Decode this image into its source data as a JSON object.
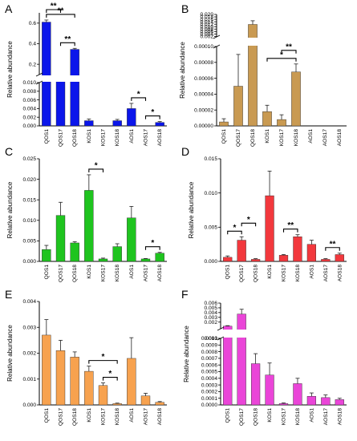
{
  "chart_data": [
    {
      "panel": "A",
      "type": "bar",
      "color": "#0b16ea",
      "ylabel": "Relative abundance",
      "categories": [
        "QOS1",
        "QOS17",
        "QOS18",
        "KOS1",
        "KOS17",
        "KOS18",
        "AOS1",
        "AOS17",
        "AOS18"
      ],
      "broken_axis": {
        "lower": [
          0,
          0.01
        ],
        "upper": [
          0.1,
          0.7
        ]
      },
      "lower_ticks": [
        "0.000",
        "0.002",
        "0.004",
        "0.006",
        "0.008",
        "0.010"
      ],
      "upper_ticks": [
        "0.2",
        "0.4",
        "0.6"
      ],
      "series": [
        {
          "values": [
            0.61,
            0.056,
            0.345,
            0.0012,
            0,
            0.0012,
            0.004,
            0,
            0.0008
          ],
          "errors": [
            0.02,
            0.01,
            0.01,
            0.0004,
            0,
            0.0003,
            0.0012,
            0,
            0.0002
          ]
        }
      ],
      "significance": [
        {
          "from": 0,
          "to": 2,
          "label": "**"
        },
        {
          "from": 0,
          "to": 1,
          "label": "**"
        },
        {
          "from": 1,
          "to": 2,
          "label": "**"
        },
        {
          "from": 6,
          "to": 7,
          "label": "*"
        },
        {
          "from": 7,
          "to": 8,
          "label": "*"
        }
      ]
    },
    {
      "panel": "B",
      "type": "bar",
      "color": "#c99a52",
      "ylabel": "Relative abundance",
      "categories": [
        "QOS1",
        "QOS17",
        "QOS18",
        "KOS1",
        "KOS17",
        "KOS18",
        "AOS1",
        "AOS17",
        "AOS18"
      ],
      "broken_axis": {
        "lower": [
          0,
          0.0001
        ],
        "upper": [
          0.0016,
          0.02
        ]
      },
      "lower_ticks": [
        "0.00000",
        "0.00002",
        "0.00004",
        "0.00006",
        "0.00008",
        "0.00010"
      ],
      "upper_ticks": [
        "0.002",
        "0.004",
        "0.006",
        "0.008",
        "0.010",
        "0.012",
        "0.014",
        "0.016",
        "0.018",
        "0.020"
      ],
      "series": [
        {
          "values": [
            5e-06,
            5e-05,
            0.0118,
            1.8e-05,
            8e-06,
            6.8e-05,
            0,
            0,
            0
          ],
          "errors": [
            4e-06,
            4e-05,
            0.003,
            8e-06,
            6e-06,
            1e-05,
            0,
            0,
            0
          ]
        }
      ],
      "significance": [
        {
          "from": 3,
          "to": 5,
          "label": "*"
        },
        {
          "from": 4,
          "to": 5,
          "label": "**"
        }
      ]
    },
    {
      "panel": "C",
      "type": "bar",
      "color": "#1fc41f",
      "ylabel": "Relative abundance",
      "categories": [
        "QOS1",
        "QOS17",
        "QOS18",
        "KOS1",
        "KOS17",
        "KOS18",
        "AOS1",
        "AOS17",
        "AOS18"
      ],
      "ylim": [
        0,
        0.025
      ],
      "ticks": [
        "0.000",
        "0.005",
        "0.010",
        "0.015",
        "0.020",
        "0.025"
      ],
      "series": [
        {
          "values": [
            0.0029,
            0.0112,
            0.0045,
            0.0173,
            0.0006,
            0.0036,
            0.0106,
            0.0006,
            0.002
          ],
          "errors": [
            0.001,
            0.0032,
            0.0003,
            0.0038,
            0.0002,
            0.0007,
            0.0028,
            0.0001,
            0.0002
          ]
        }
      ],
      "significance": [
        {
          "from": 3,
          "to": 4,
          "label": "*"
        },
        {
          "from": 7,
          "to": 8,
          "label": "*"
        }
      ]
    },
    {
      "panel": "D",
      "type": "bar",
      "color": "#f2383d",
      "ylabel": "Relative abundance",
      "categories": [
        "QOS1",
        "QOS17",
        "QOS18",
        "KOS1",
        "KOS17",
        "KOS18",
        "AOS1",
        "AOS17",
        "AOS18"
      ],
      "ylim": [
        0,
        0.015
      ],
      "ticks": [
        "0.000",
        "0.005",
        "0.010",
        "0.015"
      ],
      "series": [
        {
          "values": [
            0.0006,
            0.0031,
            0.0003,
            0.0096,
            0.0009,
            0.0036,
            0.0025,
            0.0003,
            0.001
          ],
          "errors": [
            0.0002,
            0.0005,
            0.0001,
            0.0036,
            0.0001,
            0.0003,
            0.0006,
            0.0001,
            0.0002
          ]
        }
      ],
      "significance": [
        {
          "from": 0,
          "to": 1,
          "label": "*"
        },
        {
          "from": 1,
          "to": 2,
          "label": "*"
        },
        {
          "from": 4,
          "to": 5,
          "label": "**"
        },
        {
          "from": 7,
          "to": 8,
          "label": "**"
        }
      ]
    },
    {
      "panel": "E",
      "type": "bar",
      "color": "#f7a24f",
      "ylabel": "Relative abundance",
      "categories": [
        "QOS1",
        "QOS17",
        "QOS18",
        "KOS1",
        "KOS17",
        "KOS18",
        "AOS1",
        "AOS17",
        "AOS18"
      ],
      "ylim": [
        0,
        0.004
      ],
      "ticks": [
        "0.000",
        "0.001",
        "0.002",
        "0.003",
        "0.004"
      ],
      "series": [
        {
          "values": [
            0.0027,
            0.0021,
            0.00185,
            0.0013,
            0.00075,
            5e-05,
            0.0018,
            0.00035,
            0.0001
          ],
          "errors": [
            0.0006,
            0.0004,
            0.0002,
            0.0002,
            0.0001,
            2e-05,
            0.0008,
            0.0001,
            3e-05
          ]
        }
      ],
      "significance": [
        {
          "from": 3,
          "to": 5,
          "label": "*"
        },
        {
          "from": 4,
          "to": 5,
          "label": "*"
        }
      ]
    },
    {
      "panel": "F",
      "type": "bar",
      "color": "#ea45d8",
      "ylabel": "Relative abundance",
      "categories": [
        "QOS1",
        "QOS17",
        "QOS18",
        "KOS1",
        "KOS17",
        "KOS18",
        "AOS1",
        "AOS17",
        "AOS18"
      ],
      "broken_axis": {
        "lower": [
          0,
          0.001
        ],
        "upper": [
          0.0006,
          0.006
        ]
      },
      "lower_ticks": [
        "0.0000",
        "0.0001",
        "0.0002",
        "0.0003",
        "0.0004",
        "0.0005",
        "0.0006",
        "0.0007",
        "0.0008",
        "0.0009",
        "0.0010"
      ],
      "upper_ticks": [
        "0.001",
        "0.002",
        "0.003",
        "0.004",
        "0.005",
        "0.006"
      ],
      "series": [
        {
          "values": [
            0.00115,
            0.0037,
            0.00062,
            0.00045,
            2e-05,
            0.00032,
            0.00013,
            0.00011,
            8e-05
          ],
          "errors": [
            0.0001,
            0.001,
            0.00015,
            0.00018,
            1e-05,
            8e-05,
            5e-05,
            4e-05,
            2e-05
          ]
        }
      ],
      "significance": []
    }
  ]
}
